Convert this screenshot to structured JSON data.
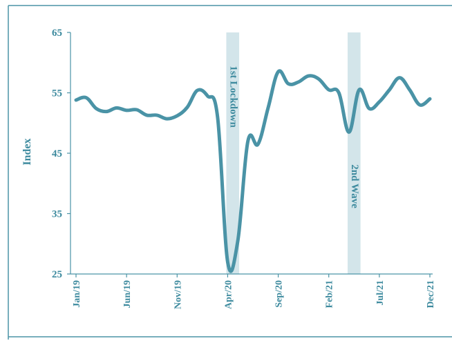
{
  "colors": {
    "line": "#4a93a6",
    "axis": "#4a93a6",
    "text": "#3d8a9e",
    "band": "#d3e5ea",
    "border": "#4a93a6",
    "background": "#ffffff"
  },
  "chart_data": {
    "type": "line",
    "title": "",
    "xlabel": "",
    "ylabel": "Index",
    "ylim": [
      25,
      65
    ],
    "yticks": [
      "25",
      "35",
      "45",
      "55",
      "65"
    ],
    "xtick_labels": [
      "Jan/19",
      "Jun/19",
      "Nov/19",
      "Apr/20",
      "Sep/20",
      "Feb/21",
      "Jul/21",
      "Dec/21"
    ],
    "grid": false,
    "legend": "none",
    "x": [
      "Jan/19",
      "Feb/19",
      "Mar/19",
      "Apr/19",
      "May/19",
      "Jun/19",
      "Jul/19",
      "Aug/19",
      "Sep/19",
      "Oct/19",
      "Nov/19",
      "Dec/19",
      "Jan/20",
      "Feb/20",
      "Mar/20",
      "Apr/20",
      "May/20",
      "Jun/20",
      "Jul/20",
      "Aug/20",
      "Sep/20",
      "Oct/20",
      "Nov/20",
      "Dec/20",
      "Jan/21",
      "Feb/21",
      "Mar/21",
      "Apr/21",
      "May/21",
      "Jun/21",
      "Jul/21",
      "Aug/21",
      "Sep/21",
      "Oct/21",
      "Nov/21",
      "Dec/21"
    ],
    "series": [
      {
        "values": [
          53.8,
          54.2,
          52.4,
          51.9,
          52.5,
          52.1,
          52.2,
          51.3,
          51.3,
          50.7,
          51.2,
          52.6,
          55.4,
          54.5,
          51.0,
          27.0,
          30.5,
          47.0,
          46.5,
          52.5,
          58.5,
          56.5,
          56.8,
          57.8,
          57.3,
          55.5,
          55.0,
          48.5,
          55.5,
          52.4,
          53.5,
          55.5,
          57.5,
          55.5,
          53.0,
          54.0
        ]
      }
    ],
    "annotations": [
      {
        "label": "1st Lockdown",
        "from": "Apr/20",
        "to": "May/20"
      },
      {
        "label": "2nd Wave",
        "from": "Apr/21",
        "to": "May/21"
      }
    ]
  }
}
